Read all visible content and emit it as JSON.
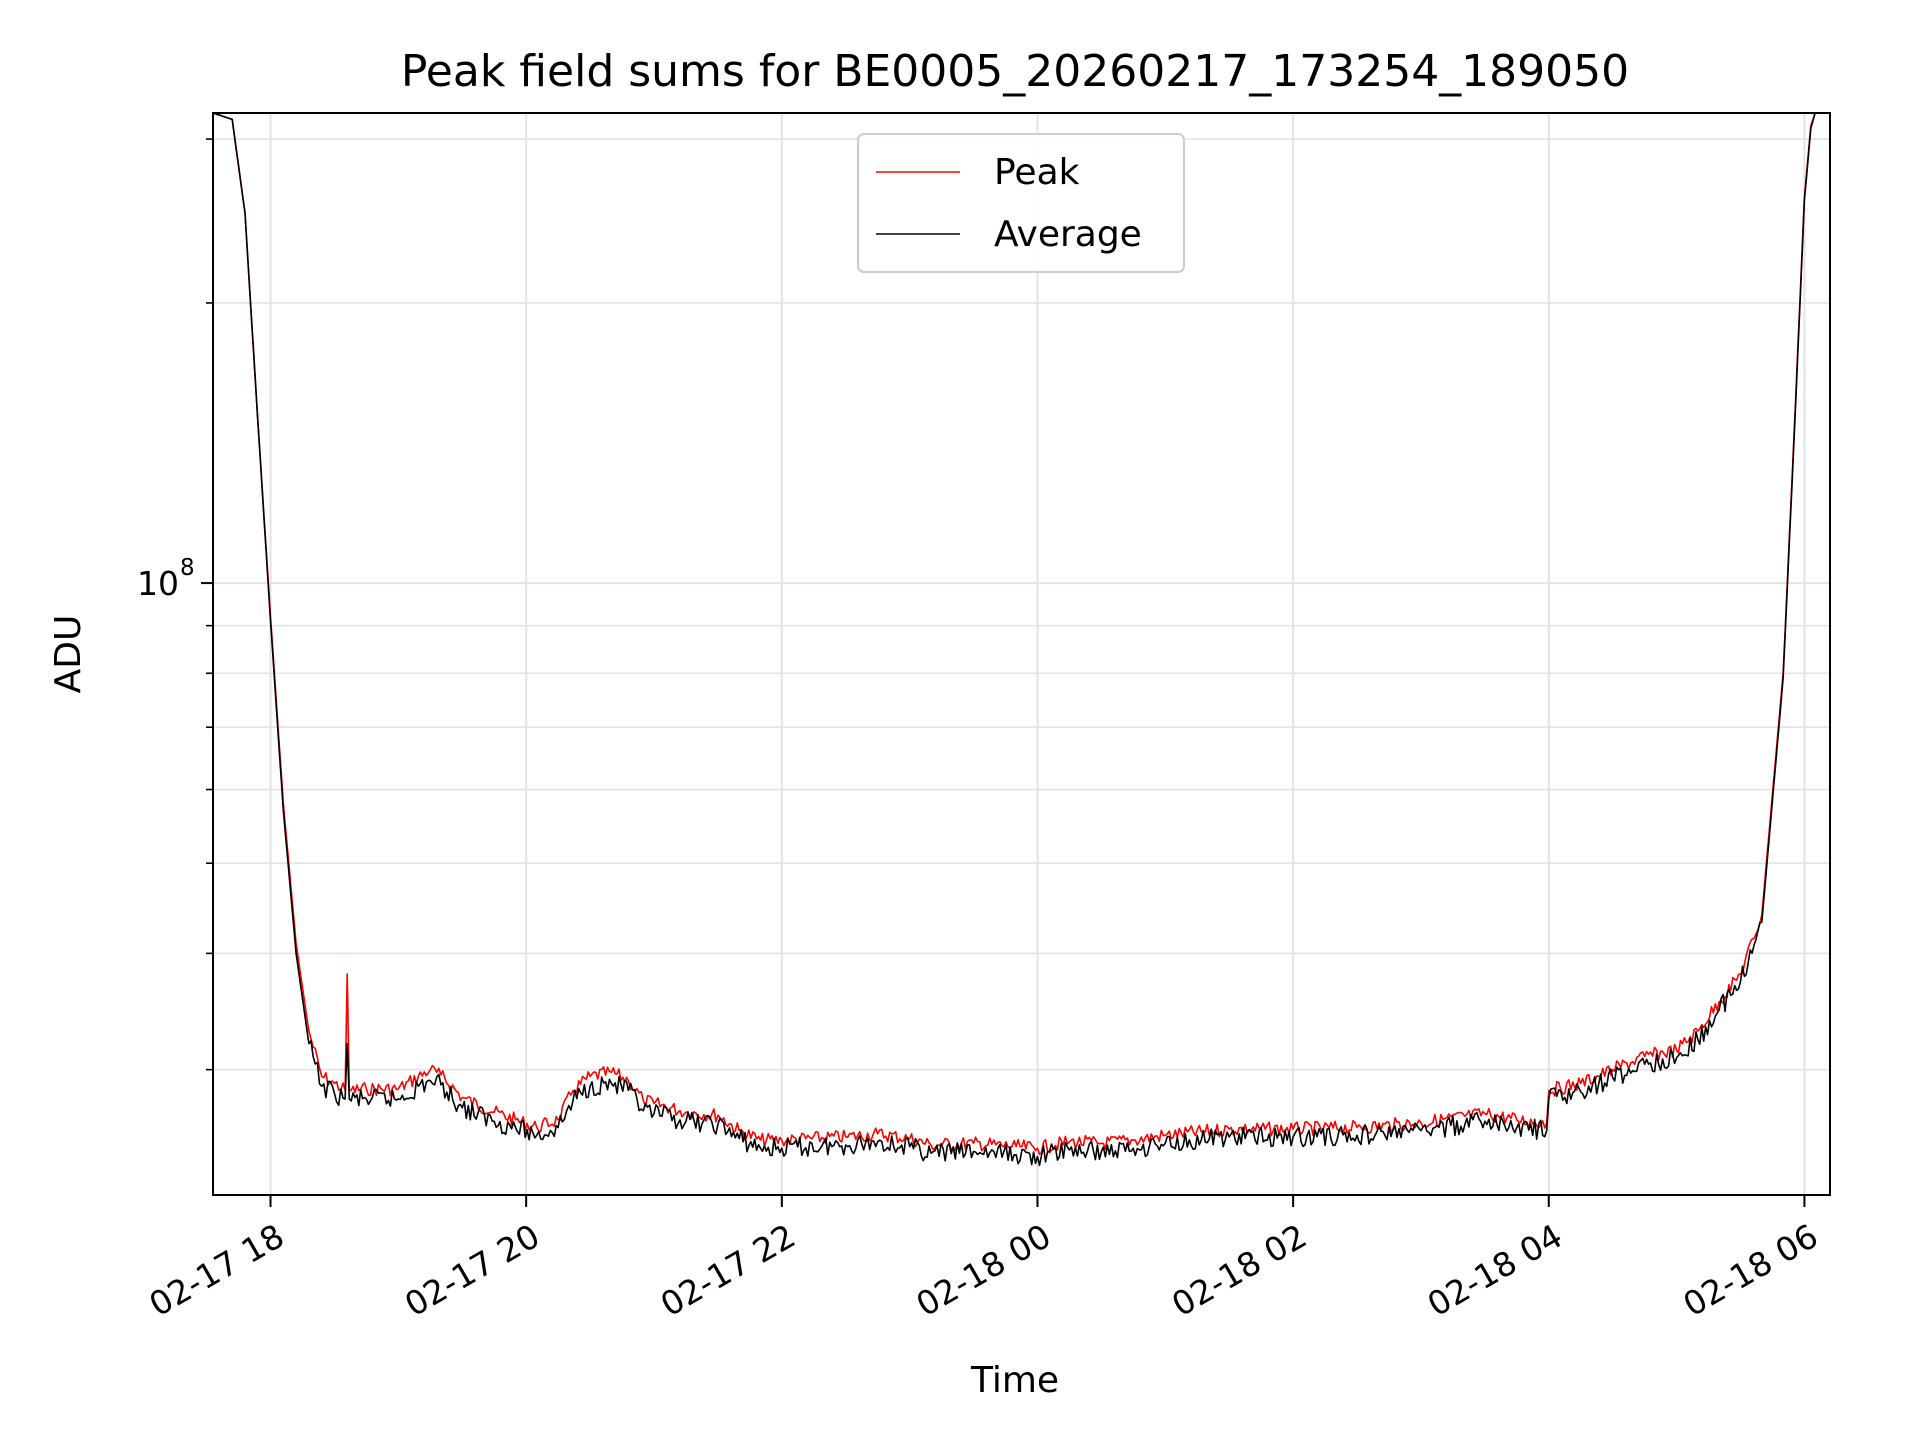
{
  "chart_data": {
    "type": "line",
    "title": "Peak field sums for BE0005_20260217_173254_189050",
    "xlabel": "Time",
    "ylabel": "ADU",
    "y_scale": "log",
    "y_major_tick": {
      "value": 100000000,
      "base": "10",
      "exponent": "8"
    },
    "ylim": [
      22000000,
      320000000
    ],
    "xlim": [
      "2026-02-17 17:33",
      "2026-02-18 06:12"
    ],
    "x_ticks": [
      {
        "value": "2026-02-17 18:00",
        "label": "02-17 18"
      },
      {
        "value": "2026-02-17 20:00",
        "label": "02-17 20"
      },
      {
        "value": "2026-02-17 22:00",
        "label": "02-17 22"
      },
      {
        "value": "2026-02-18 00:00",
        "label": "02-18 00"
      },
      {
        "value": "2026-02-18 02:00",
        "label": "02-18 02"
      },
      {
        "value": "2026-02-18 04:00",
        "label": "02-18 04"
      },
      {
        "value": "2026-02-18 06:00",
        "label": "02-18 06"
      }
    ],
    "grid": true,
    "legend_position": "upper center",
    "series": [
      {
        "name": "Peak",
        "color": "#ff0000",
        "points": [
          [
            "2026-02-17 17:33",
            320000000
          ],
          [
            "2026-02-17 17:42",
            315000000
          ],
          [
            "2026-02-17 17:48",
            250000000
          ],
          [
            "2026-02-17 17:54",
            150000000
          ],
          [
            "2026-02-17 18:00",
            92000000
          ],
          [
            "2026-02-17 18:06",
            58000000
          ],
          [
            "2026-02-17 18:12",
            41000000
          ],
          [
            "2026-02-17 18:18",
            33000000
          ],
          [
            "2026-02-17 18:24",
            29500000
          ],
          [
            "2026-02-17 18:30",
            29000000
          ],
          [
            "2026-02-17 18:35",
            28500000
          ],
          [
            "2026-02-17 18:36",
            38000000
          ],
          [
            "2026-02-17 18:37",
            28500000
          ],
          [
            "2026-02-17 18:45",
            28600000
          ],
          [
            "2026-02-17 19:00",
            28600000
          ],
          [
            "2026-02-17 19:15",
            30000000
          ],
          [
            "2026-02-17 19:20",
            29600000
          ],
          [
            "2026-02-17 19:30",
            28000000
          ],
          [
            "2026-02-17 19:45",
            27000000
          ],
          [
            "2026-02-17 19:55",
            26500000
          ],
          [
            "2026-02-17 20:05",
            26000000
          ],
          [
            "2026-02-17 20:15",
            26500000
          ],
          [
            "2026-02-17 20:22",
            28500000
          ],
          [
            "2026-02-17 20:30",
            29500000
          ],
          [
            "2026-02-17 20:40",
            29800000
          ],
          [
            "2026-02-17 20:48",
            29200000
          ],
          [
            "2026-02-17 20:55",
            27800000
          ],
          [
            "2026-02-17 21:00",
            27600000
          ],
          [
            "2026-02-17 21:15",
            27000000
          ],
          [
            "2026-02-17 21:30",
            26800000
          ],
          [
            "2026-02-17 21:40",
            25800000
          ],
          [
            "2026-02-17 21:50",
            25200000
          ],
          [
            "2026-02-17 22:00",
            25200000
          ],
          [
            "2026-02-17 22:30",
            25400000
          ],
          [
            "2026-02-17 22:45",
            25600000
          ],
          [
            "2026-02-17 23:00",
            25300000
          ],
          [
            "2026-02-17 23:10",
            24900000
          ],
          [
            "2026-02-17 23:30",
            25000000
          ],
          [
            "2026-02-17 23:50",
            24800000
          ],
          [
            "2026-02-18 00:00",
            24700000
          ],
          [
            "2026-02-18 00:15",
            25100000
          ],
          [
            "2026-02-18 00:30",
            25000000
          ],
          [
            "2026-02-18 00:45",
            25200000
          ],
          [
            "2026-02-18 01:00",
            25500000
          ],
          [
            "2026-02-18 01:30",
            25900000
          ],
          [
            "2026-02-18 02:00",
            25900000
          ],
          [
            "2026-02-18 02:30",
            26000000
          ],
          [
            "2026-02-18 03:00",
            26300000
          ],
          [
            "2026-02-18 03:30",
            26900000
          ],
          [
            "2026-02-18 03:45",
            26500000
          ],
          [
            "2026-02-18 03:59",
            26300000
          ],
          [
            "2026-02-18 04:00",
            28500000
          ],
          [
            "2026-02-18 04:15",
            29000000
          ],
          [
            "2026-02-18 04:30",
            30000000
          ],
          [
            "2026-02-18 04:45",
            31000000
          ],
          [
            "2026-02-18 05:00",
            31500000
          ],
          [
            "2026-02-18 05:10",
            33000000
          ],
          [
            "2026-02-18 05:20",
            35500000
          ],
          [
            "2026-02-18 05:30",
            38000000
          ],
          [
            "2026-02-18 05:40",
            44000000
          ],
          [
            "2026-02-18 05:50",
            80000000
          ],
          [
            "2026-02-18 05:56",
            160000000
          ],
          [
            "2026-02-18 06:00",
            260000000
          ],
          [
            "2026-02-18 06:03",
            310000000
          ],
          [
            "2026-02-18 06:05",
            320000000
          ]
        ]
      },
      {
        "name": "Average",
        "color": "#000000",
        "points": [
          [
            "2026-02-17 17:33",
            320000000
          ],
          [
            "2026-02-17 17:42",
            315000000
          ],
          [
            "2026-02-17 17:48",
            250000000
          ],
          [
            "2026-02-17 17:54",
            150000000
          ],
          [
            "2026-02-17 18:00",
            91000000
          ],
          [
            "2026-02-17 18:06",
            57000000
          ],
          [
            "2026-02-17 18:12",
            40000000
          ],
          [
            "2026-02-17 18:18",
            32000000
          ],
          [
            "2026-02-17 18:24",
            28800000
          ],
          [
            "2026-02-17 18:30",
            28300000
          ],
          [
            "2026-02-17 18:35",
            27900000
          ],
          [
            "2026-02-17 18:36",
            32000000
          ],
          [
            "2026-02-17 18:37",
            27900000
          ],
          [
            "2026-02-17 18:45",
            27900000
          ],
          [
            "2026-02-17 19:00",
            27900000
          ],
          [
            "2026-02-17 19:15",
            29200000
          ],
          [
            "2026-02-17 19:20",
            28900000
          ],
          [
            "2026-02-17 19:30",
            27300000
          ],
          [
            "2026-02-17 19:45",
            26400000
          ],
          [
            "2026-02-17 19:55",
            26000000
          ],
          [
            "2026-02-17 20:05",
            25500000
          ],
          [
            "2026-02-17 20:15",
            26000000
          ],
          [
            "2026-02-17 20:22",
            27800000
          ],
          [
            "2026-02-17 20:30",
            28800000
          ],
          [
            "2026-02-17 20:40",
            29000000
          ],
          [
            "2026-02-17 20:48",
            28500000
          ],
          [
            "2026-02-17 20:55",
            27100000
          ],
          [
            "2026-02-17 21:00",
            26900000
          ],
          [
            "2026-02-17 21:15",
            26400000
          ],
          [
            "2026-02-17 21:30",
            26200000
          ],
          [
            "2026-02-17 21:40",
            25300000
          ],
          [
            "2026-02-17 21:50",
            24700000
          ],
          [
            "2026-02-17 22:00",
            24700000
          ],
          [
            "2026-02-17 22:30",
            24900000
          ],
          [
            "2026-02-17 22:45",
            25100000
          ],
          [
            "2026-02-17 23:00",
            24800000
          ],
          [
            "2026-02-17 23:10",
            24400000
          ],
          [
            "2026-02-17 23:30",
            24500000
          ],
          [
            "2026-02-17 23:50",
            24300000
          ],
          [
            "2026-02-18 00:00",
            24200000
          ],
          [
            "2026-02-18 00:15",
            24600000
          ],
          [
            "2026-02-18 00:30",
            24500000
          ],
          [
            "2026-02-18 00:45",
            24700000
          ],
          [
            "2026-02-18 01:00",
            25000000
          ],
          [
            "2026-02-18 01:30",
            25400000
          ],
          [
            "2026-02-18 02:00",
            25400000
          ],
          [
            "2026-02-18 02:30",
            25500000
          ],
          [
            "2026-02-18 03:00",
            25800000
          ],
          [
            "2026-02-18 03:30",
            26400000
          ],
          [
            "2026-02-18 03:45",
            26000000
          ],
          [
            "2026-02-18 03:59",
            25800000
          ],
          [
            "2026-02-18 04:00",
            27900000
          ],
          [
            "2026-02-18 04:15",
            28400000
          ],
          [
            "2026-02-18 04:30",
            29400000
          ],
          [
            "2026-02-18 04:45",
            30400000
          ],
          [
            "2026-02-18 05:00",
            30900000
          ],
          [
            "2026-02-18 05:10",
            32300000
          ],
          [
            "2026-02-18 05:20",
            34800000
          ],
          [
            "2026-02-18 05:30",
            37300000
          ],
          [
            "2026-02-18 05:40",
            43200000
          ],
          [
            "2026-02-18 05:50",
            79000000
          ],
          [
            "2026-02-18 05:56",
            158000000
          ],
          [
            "2026-02-18 06:00",
            258000000
          ],
          [
            "2026-02-18 06:03",
            308000000
          ],
          [
            "2026-02-18 06:05",
            320000000
          ]
        ]
      }
    ]
  }
}
